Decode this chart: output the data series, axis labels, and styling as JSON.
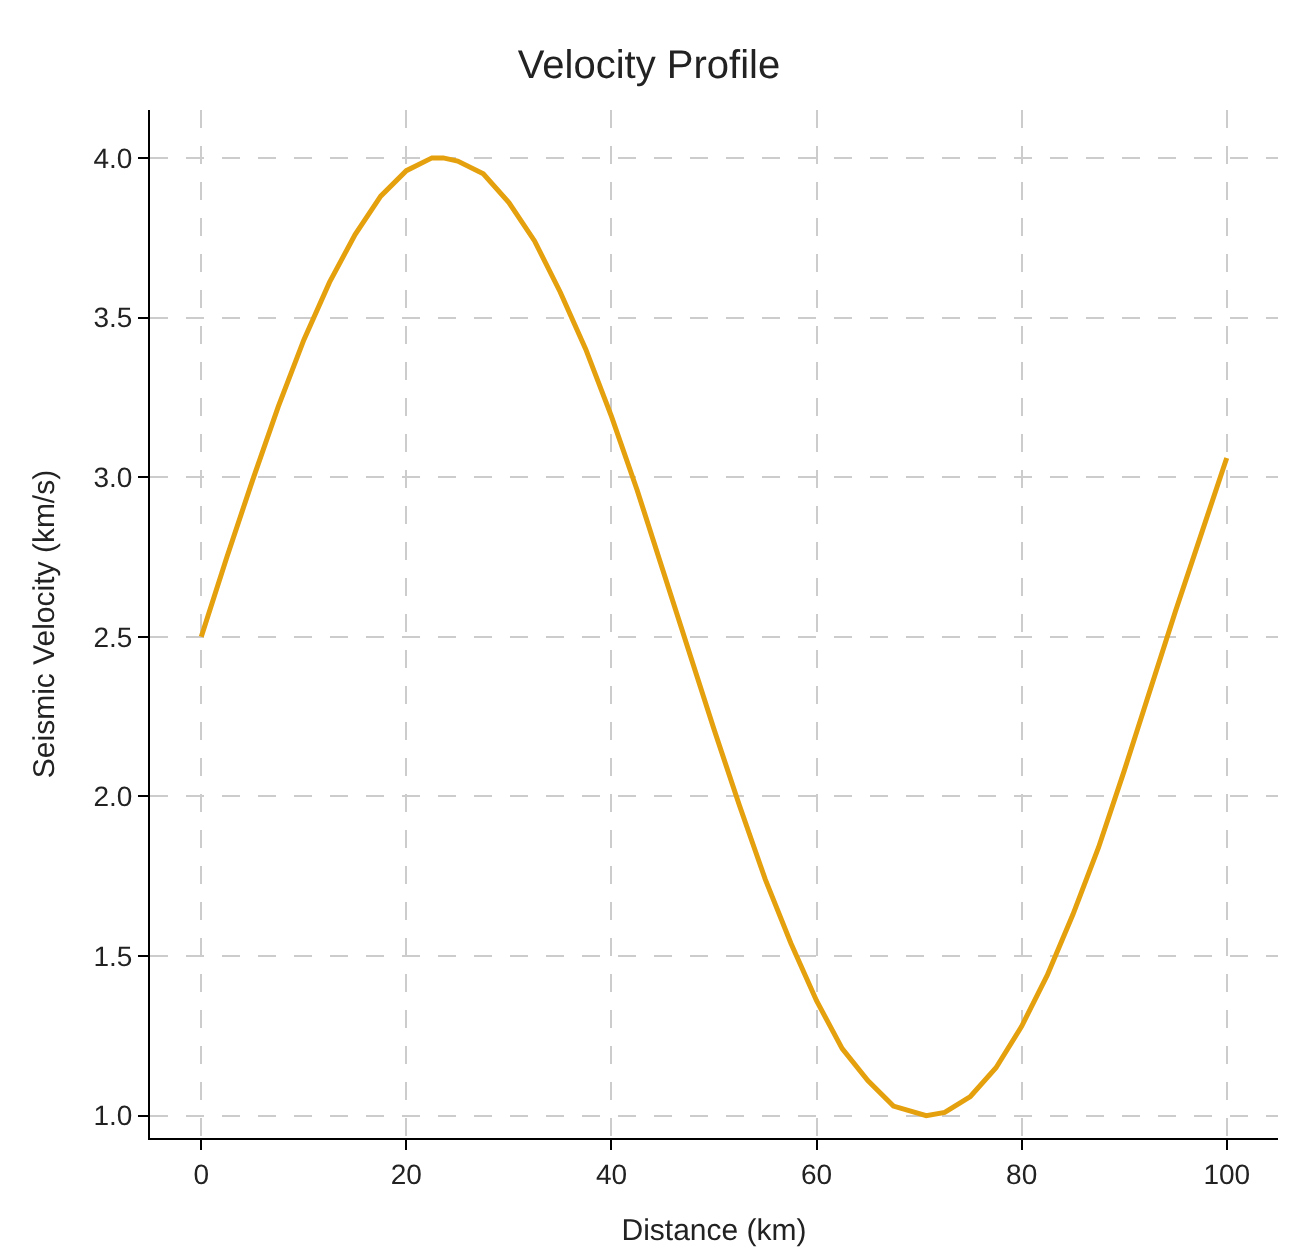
{
  "chart_data": {
    "type": "line",
    "title": "Velocity Profile",
    "xlabel": "Distance (km)",
    "ylabel": "Seismic Velocity (km/s)",
    "x": [
      0,
      2.5,
      5,
      7.5,
      10,
      12.5,
      15,
      17.5,
      20,
      22.5,
      23.6,
      25,
      27.5,
      30,
      32.5,
      35,
      37.5,
      40,
      42.5,
      45,
      47.5,
      50,
      52.5,
      55,
      57.5,
      60,
      62.5,
      65,
      67.5,
      70.7,
      72.5,
      75,
      77.5,
      80,
      82.5,
      85,
      87.5,
      90,
      92.5,
      95,
      97.5,
      100
    ],
    "series": [
      {
        "color": "#e5a00d",
        "values": [
          2.5,
          2.75,
          2.99,
          3.22,
          3.43,
          3.61,
          3.76,
          3.88,
          3.96,
          4.0,
          4.0,
          3.99,
          3.95,
          3.86,
          3.74,
          3.58,
          3.4,
          3.19,
          2.96,
          2.71,
          2.46,
          2.21,
          1.97,
          1.74,
          1.54,
          1.36,
          1.21,
          1.11,
          1.03,
          1.0,
          1.01,
          1.06,
          1.15,
          1.28,
          1.44,
          1.63,
          1.84,
          2.08,
          2.33,
          2.58,
          2.82,
          3.06
        ]
      }
    ],
    "xlim": [
      -5,
      105
    ],
    "ylim": [
      0.93,
      4.15
    ],
    "xticks": [
      0,
      20,
      40,
      60,
      80,
      100
    ],
    "yticks": [
      {
        "value": 1,
        "label": "1.0"
      },
      {
        "value": 1.5,
        "label": "1.5"
      },
      {
        "value": 2,
        "label": "2.0"
      },
      {
        "value": 2.5,
        "label": "2.5"
      },
      {
        "value": 3,
        "label": "3.0"
      },
      {
        "value": 3.5,
        "label": "3.5"
      },
      {
        "value": 4,
        "label": "4.0"
      }
    ],
    "grid": true,
    "legend": false,
    "marker": "none",
    "line_style": "solid"
  }
}
